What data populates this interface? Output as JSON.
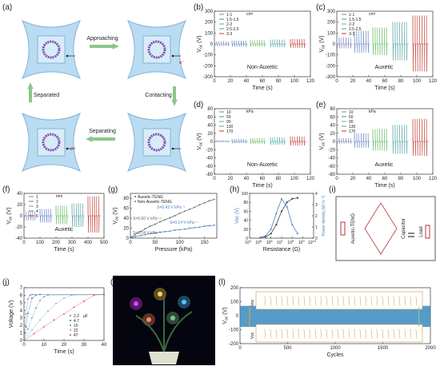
{
  "panel_labels": [
    "(a)",
    "(b)",
    "(c)",
    "(d)",
    "(e)",
    "(f)",
    "(g)",
    "(h)",
    "(i)",
    "(j)",
    "(k)",
    "(l)"
  ],
  "panel_a": {
    "cycle_labels": [
      "Approaching",
      "Contacting",
      "Separating",
      "Separated"
    ],
    "electron": "e⁻"
  },
  "panel_i": {
    "teng_label": "Auxetic-TENG",
    "capacitor_label": "Capacitor",
    "load_label": "Load"
  },
  "colors": {
    "blue": "#4f7fc4",
    "green": "#5fb85f",
    "darkred": "#b03a3a",
    "gray": "#666666",
    "arrow_green": "#8cc68c",
    "purple": "#7b4fb3"
  },
  "chart_data": [
    {
      "id": "b",
      "type": "line",
      "xlabel": "Time (s)",
      "ylabel": "V",
      "ylabel_sub": "oc",
      "ylabel_unit": "(V)",
      "xlim": [
        0,
        120
      ],
      "ylim": [
        -300,
        300
      ],
      "xticks": [
        0,
        20,
        40,
        60,
        80,
        100,
        120
      ],
      "yticks": [
        -300,
        -200,
        -100,
        0,
        100,
        200,
        300
      ],
      "legend_title": "",
      "legend_unit": "cm²",
      "legend_entries": [
        "1-1",
        "1.5-1.5",
        "2-2",
        "2.5-2.5",
        "3-3"
      ],
      "annotation": "Non-Auxetic",
      "series": [
        {
          "name": "1-1",
          "range": [
            0,
            20
          ],
          "amplitude": [
            25,
            -20
          ]
        },
        {
          "name": "1.5-1.5",
          "range": [
            22,
            42
          ],
          "amplitude": [
            30,
            -25
          ]
        },
        {
          "name": "2-2",
          "range": [
            45,
            65
          ],
          "amplitude": [
            35,
            -25
          ]
        },
        {
          "name": "2.5-2.5",
          "range": [
            70,
            90
          ],
          "amplitude": [
            40,
            -30
          ]
        },
        {
          "name": "3-3",
          "range": [
            95,
            115
          ],
          "amplitude": [
            45,
            -35
          ]
        }
      ]
    },
    {
      "id": "c",
      "type": "line",
      "xlabel": "Time (s)",
      "ylabel": "V",
      "ylabel_sub": "oc",
      "ylabel_unit": "(V)",
      "xlim": [
        0,
        120
      ],
      "ylim": [
        -300,
        300
      ],
      "xticks": [
        0,
        20,
        40,
        60,
        80,
        100,
        120
      ],
      "yticks": [
        -300,
        -200,
        -100,
        0,
        100,
        200,
        300
      ],
      "legend_title": "",
      "legend_unit": "cm²",
      "legend_entries": [
        "1-1",
        "1.5-1.5",
        "2-2",
        "2.5-2.5",
        "3-3"
      ],
      "annotation": "Auxetic",
      "series": [
        {
          "name": "1-1",
          "range": [
            0,
            20
          ],
          "amplitude": [
            60,
            -40
          ]
        },
        {
          "name": "1.5-1.5",
          "range": [
            22,
            42
          ],
          "amplitude": [
            120,
            -80
          ]
        },
        {
          "name": "2-2",
          "range": [
            45,
            65
          ],
          "amplitude": [
            150,
            -100
          ]
        },
        {
          "name": "2.5-2.5",
          "range": [
            70,
            90
          ],
          "amplitude": [
            200,
            -150
          ]
        },
        {
          "name": "3-3",
          "range": [
            95,
            115
          ],
          "amplitude": [
            260,
            -250
          ]
        }
      ]
    },
    {
      "id": "d",
      "type": "line",
      "xlabel": "Time (s)",
      "ylabel": "V",
      "ylabel_sub": "oc",
      "ylabel_unit": "(V)",
      "xlim": [
        0,
        120
      ],
      "ylim": [
        -80,
        80
      ],
      "xticks": [
        0,
        20,
        40,
        60,
        80,
        100,
        120
      ],
      "yticks": [
        -80,
        -60,
        -40,
        -20,
        0,
        20,
        40,
        60,
        80
      ],
      "legend_title": "",
      "legend_unit": "kPa",
      "legend_entries": [
        "10",
        "50",
        "90",
        "130",
        "170"
      ],
      "annotation": "Non-Auxetic",
      "series": [
        {
          "name": "10",
          "range": [
            0,
            20
          ],
          "amplitude": [
            3,
            -2
          ]
        },
        {
          "name": "50",
          "range": [
            22,
            42
          ],
          "amplitude": [
            6,
            -4
          ]
        },
        {
          "name": "90",
          "range": [
            45,
            65
          ],
          "amplitude": [
            8,
            -6
          ]
        },
        {
          "name": "130",
          "range": [
            70,
            90
          ],
          "amplitude": [
            10,
            -8
          ]
        },
        {
          "name": "170",
          "range": [
            95,
            115
          ],
          "amplitude": [
            12,
            -10
          ]
        }
      ]
    },
    {
      "id": "e",
      "type": "line",
      "xlabel": "Time (s)",
      "ylabel": "V",
      "ylabel_sub": "oc",
      "ylabel_unit": "(V)",
      "xlim": [
        0,
        120
      ],
      "ylim": [
        -80,
        80
      ],
      "xticks": [
        0,
        20,
        40,
        60,
        80,
        100,
        120
      ],
      "yticks": [
        -80,
        -60,
        -40,
        -20,
        0,
        20,
        40,
        60,
        80
      ],
      "legend_title": "",
      "legend_unit": "kPa",
      "legend_entries": [
        "10",
        "50",
        "90",
        "130",
        "170"
      ],
      "annotation": "Auxetic",
      "series": [
        {
          "name": "10",
          "range": [
            0,
            20
          ],
          "amplitude": [
            8,
            -5
          ]
        },
        {
          "name": "50",
          "range": [
            22,
            42
          ],
          "amplitude": [
            20,
            -15
          ]
        },
        {
          "name": "90",
          "range": [
            45,
            65
          ],
          "amplitude": [
            30,
            -22
          ]
        },
        {
          "name": "130",
          "range": [
            70,
            90
          ],
          "amplitude": [
            40,
            -30
          ]
        },
        {
          "name": "170",
          "range": [
            95,
            115
          ],
          "amplitude": [
            55,
            -35
          ]
        }
      ]
    },
    {
      "id": "f",
      "type": "line",
      "xlabel": "Time (s)",
      "ylabel": "V",
      "ylabel_sub": "oc",
      "ylabel_unit": "(V)",
      "xlim": [
        0,
        500
      ],
      "ylim": [
        -40,
        40
      ],
      "xticks": [
        0,
        100,
        200,
        300,
        400,
        500
      ],
      "yticks": [
        -40,
        -20,
        0,
        20,
        40
      ],
      "legend_title": "",
      "legend_unit": "mm",
      "legend_entries": [
        "1",
        "2",
        "3",
        "4",
        "5"
      ],
      "annotation": "Auxetic",
      "series": [
        {
          "name": "1",
          "range": [
            0,
            80
          ],
          "amplitude": [
            8,
            -8
          ]
        },
        {
          "name": "2",
          "range": [
            100,
            180
          ],
          "amplitude": [
            12,
            -12
          ]
        },
        {
          "name": "3",
          "range": [
            200,
            280
          ],
          "amplitude": [
            18,
            -15
          ]
        },
        {
          "name": "4",
          "range": [
            300,
            380
          ],
          "amplitude": [
            22,
            -20
          ]
        },
        {
          "name": "5",
          "range": [
            400,
            480
          ],
          "amplitude": [
            35,
            -30
          ]
        }
      ]
    },
    {
      "id": "g",
      "type": "scatter",
      "xlabel": "Pressure (kPa)",
      "ylabel": "V",
      "ylabel_sub": "oc",
      "ylabel_unit": "(V)",
      "xlim": [
        0,
        175
      ],
      "ylim": [
        0,
        90
      ],
      "xticks": [
        0,
        50,
        100,
        150
      ],
      "yticks": [
        0,
        20,
        40,
        60,
        80
      ],
      "legend_entries": [
        "Auxetic-TENG",
        "Non-Auxetic-TENG"
      ],
      "annotations": [
        "S=0.43 V kPa⁻¹",
        "S=0.60 V kPa⁻¹",
        "S=0.14 V kPa⁻¹",
        "S=0.24 V kPa⁻¹"
      ],
      "series": [
        {
          "name": "Auxetic-TENG",
          "x": [
            2,
            10,
            20,
            30,
            40,
            50,
            60,
            70,
            80,
            90,
            100,
            110,
            120,
            130,
            140,
            150,
            160,
            170
          ],
          "y": [
            2,
            7,
            13,
            19,
            24,
            28,
            33,
            37,
            41,
            45,
            50,
            54,
            58,
            62,
            67,
            71,
            75,
            78
          ]
        },
        {
          "name": "Non-Auxetic-TENG",
          "x": [
            2,
            10,
            20,
            30,
            40,
            50,
            60,
            70,
            80,
            90,
            100,
            110,
            120,
            130,
            140,
            150,
            160,
            170
          ],
          "y": [
            1,
            3,
            5,
            7,
            9,
            10,
            12,
            13,
            14,
            16,
            17,
            18,
            20,
            21,
            22,
            24,
            25,
            26
          ]
        }
      ]
    },
    {
      "id": "h",
      "type": "line",
      "xlabel": "Resistance (Ω)",
      "ylabel": "V",
      "ylabel_sub": "oc",
      "ylabel_unit": "(V)",
      "y2label": "Power density (W m⁻²)",
      "xscale": "log",
      "xlim": [
        4,
        10
      ],
      "ylim": [
        0,
        100
      ],
      "y2lim": [
        0,
        4
      ],
      "xtick_exponents": [
        4,
        5,
        6,
        7,
        8,
        9,
        10
      ],
      "yticks": [
        0,
        20,
        40,
        60,
        80,
        100
      ],
      "y2ticks": [
        0,
        1,
        2,
        3,
        4
      ],
      "series": [
        {
          "name": "Voltage",
          "log10_x": [
            5,
            5.5,
            6,
            6.5,
            7,
            7.5,
            8,
            8.5
          ],
          "y": [
            1,
            3,
            10,
            30,
            60,
            80,
            88,
            90
          ]
        },
        {
          "name": "Power density",
          "log10_x": [
            5,
            5.5,
            6,
            6.5,
            7,
            7.5,
            8,
            8.5
          ],
          "y2": [
            0.05,
            0.2,
            0.8,
            2.2,
            3.5,
            2.8,
            1.2,
            0.4
          ]
        }
      ]
    },
    {
      "id": "j",
      "type": "line",
      "xlabel": "Time (s)",
      "ylabel": "Voltage (V)",
      "xlim": [
        0,
        40
      ],
      "ylim": [
        0,
        7
      ],
      "xticks": [
        0,
        10,
        20,
        30,
        40
      ],
      "yticks": [
        0,
        1,
        2,
        3,
        4,
        5,
        6,
        7
      ],
      "legend_unit": "μF",
      "series": [
        {
          "name": "2.2",
          "x": [
            0,
            1,
            2,
            3,
            4,
            5,
            40
          ],
          "y": [
            0,
            3.5,
            5.5,
            6.0,
            6.1,
            6.1,
            6.1
          ]
        },
        {
          "name": "4.7",
          "x": [
            0,
            1,
            2,
            4,
            6,
            8,
            40
          ],
          "y": [
            0,
            1.8,
            3.6,
            5.6,
            6.0,
            6.1,
            6.1
          ]
        },
        {
          "name": "10",
          "x": [
            0,
            2,
            4,
            6,
            8,
            10,
            12,
            40
          ],
          "y": [
            0,
            1.5,
            3.0,
            4.3,
            5.3,
            5.8,
            6.0,
            6.1
          ]
        },
        {
          "name": "22",
          "x": [
            0,
            4,
            8,
            12,
            16,
            20,
            24,
            40
          ],
          "y": [
            0,
            1.4,
            2.7,
            3.9,
            4.9,
            5.6,
            6.0,
            6.1
          ]
        },
        {
          "name": "47",
          "x": [
            0,
            5,
            10,
            15,
            20,
            25,
            30,
            35,
            40
          ],
          "y": [
            0,
            0.9,
            1.8,
            2.7,
            3.5,
            4.4,
            5.2,
            6.0,
            6.1
          ]
        }
      ]
    },
    {
      "id": "l",
      "type": "line",
      "xlabel": "Cycles",
      "ylabel": "V",
      "ylabel_sub": "oc",
      "ylabel_unit": "(V)",
      "xlim": [
        0,
        2000
      ],
      "ylim": [
        -200,
        200
      ],
      "xticks": [
        0,
        500,
        1000,
        1500,
        2000
      ],
      "yticks": [
        -200,
        -100,
        0,
        100,
        200
      ],
      "band": [
        -80,
        70
      ],
      "inset_labels": [
        "V",
        "V"
      ],
      "inset_sub": "oc",
      "marked_cycles": [
        100,
        1880
      ]
    }
  ]
}
